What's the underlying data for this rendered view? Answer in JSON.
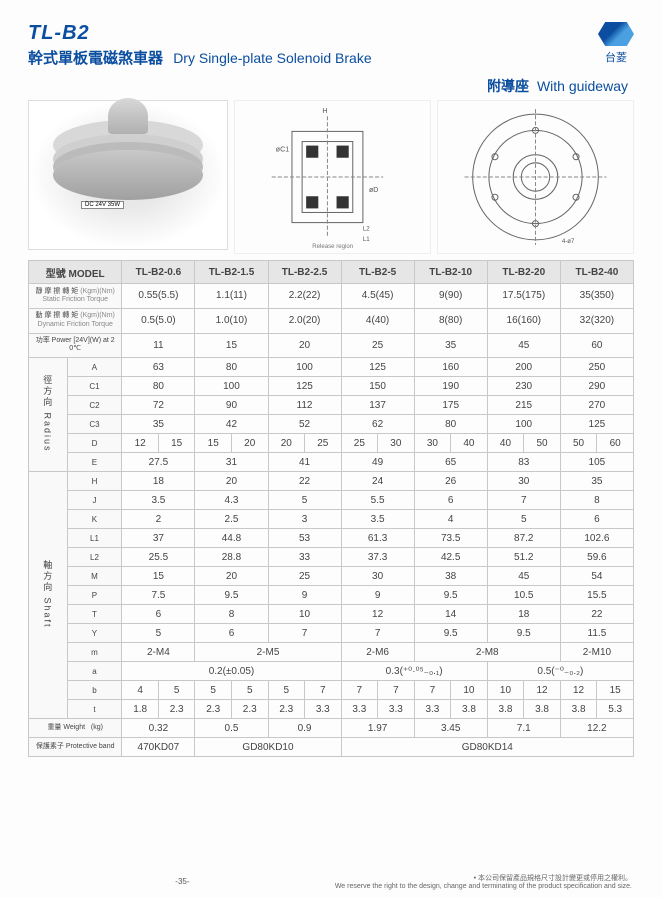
{
  "header": {
    "code": "TL-B2",
    "name_cn": "幹式單板電磁煞車器",
    "name_en": "Dry Single-plate Solenoid Brake",
    "brand": "台菱",
    "guide_cn": "附導座",
    "guide_en": "With guideway",
    "prod_label": "DC 24V 35W"
  },
  "colors": {
    "accent": "#0b4ea0",
    "header_bg": "#e6e6e6",
    "border": "#c8c8c8",
    "text": "#444444",
    "page_bg": "#fdfdfd"
  },
  "models": [
    "TL-B2-0.6",
    "TL-B2-1.5",
    "TL-B2-2.5",
    "TL-B2-5",
    "TL-B2-10",
    "TL-B2-20",
    "TL-B2-40"
  ],
  "rows": {
    "model_label": "型號 MODEL",
    "static_label_cn": "靜 摩 擦 轉 矩",
    "static_label_en": "Static Friction Torque",
    "static_unit": "(Kgm)(Nm)",
    "static": [
      "0.55(5.5)",
      "1.1(11)",
      "2.2(22)",
      "4.5(45)",
      "9(90)",
      "17.5(175)",
      "35(350)"
    ],
    "dynamic_label_cn": "動 摩 擦 轉 矩",
    "dynamic_label_en": "Dynamic Friction Torque",
    "dynamic_unit": "(Kgm)(Nm)",
    "dynamic": [
      "0.5(5.0)",
      "1.0(10)",
      "2.0(20)",
      "4(40)",
      "8(80)",
      "16(160)",
      "32(320)"
    ],
    "power_label": "功率 Power [24V](W) at 20℃",
    "power": [
      "11",
      "15",
      "20",
      "25",
      "35",
      "45",
      "60"
    ],
    "radius_label": "徑方向\nRadius",
    "A": [
      "63",
      "80",
      "100",
      "125",
      "160",
      "200",
      "250"
    ],
    "C1": [
      "80",
      "100",
      "125",
      "150",
      "190",
      "230",
      "290"
    ],
    "C2": [
      "72",
      "90",
      "112",
      "137",
      "175",
      "215",
      "270"
    ],
    "C3": [
      "35",
      "42",
      "52",
      "62",
      "80",
      "100",
      "125"
    ],
    "D": [
      [
        "12",
        "15"
      ],
      [
        "15",
        "20"
      ],
      [
        "20",
        "25"
      ],
      [
        "25",
        "30"
      ],
      [
        "30",
        "40"
      ],
      [
        "40",
        "50"
      ],
      [
        "50",
        "60"
      ]
    ],
    "E": [
      "27.5",
      "31",
      "41",
      "49",
      "65",
      "83",
      "105"
    ],
    "shaft_label": "軸方向\nShaft",
    "H": [
      "18",
      "20",
      "22",
      "24",
      "26",
      "30",
      "35"
    ],
    "J": [
      "3.5",
      "4.3",
      "5",
      "5.5",
      "6",
      "7",
      "8"
    ],
    "K": [
      "2",
      "2.5",
      "3",
      "3.5",
      "4",
      "5",
      "6"
    ],
    "L1": [
      "37",
      "44.8",
      "53",
      "61.3",
      "73.5",
      "87.2",
      "102.6"
    ],
    "L2": [
      "25.5",
      "28.8",
      "33",
      "37.3",
      "42.5",
      "51.2",
      "59.6"
    ],
    "M": [
      "15",
      "20",
      "25",
      "30",
      "38",
      "45",
      "54"
    ],
    "P": [
      "7.5",
      "9.5",
      "9",
      "9",
      "9.5",
      "10.5",
      "15.5"
    ],
    "T": [
      "6",
      "8",
      "10",
      "12",
      "14",
      "18",
      "22"
    ],
    "Y": [
      "5",
      "6",
      "7",
      "7",
      "9.5",
      "9.5",
      "11.5"
    ],
    "m_label": "m",
    "m_vals": [
      "2-M4",
      "2-M5",
      "2-M6",
      "2-M8",
      "2-M10"
    ],
    "m_spans": [
      1,
      2,
      1,
      2,
      1
    ],
    "a_label": "a",
    "a_vals": [
      "0.2(±0.05)",
      "0.3(⁺⁰·⁰⁵₋₀.₁)",
      "0.5(⁻⁰₋₀.₂)"
    ],
    "a_spans": [
      3,
      2,
      2
    ],
    "b": [
      [
        "4",
        "5"
      ],
      [
        "5",
        "5"
      ],
      [
        "5",
        "7"
      ],
      [
        "7",
        "7"
      ],
      [
        "7",
        "10"
      ],
      [
        "10",
        "12"
      ],
      [
        "12",
        "15"
      ]
    ],
    "t": [
      [
        "1.8",
        "2.3"
      ],
      [
        "2.3",
        "2.3"
      ],
      [
        "2.3",
        "3.3"
      ],
      [
        "3.3",
        "3.3"
      ],
      [
        "3.3",
        "3.8"
      ],
      [
        "3.8",
        "3.8"
      ],
      [
        "3.8",
        "5.3"
      ]
    ],
    "weight_label_cn": "重量 Weight",
    "weight_unit": "(kg)",
    "weight": [
      "0.32",
      "0.5",
      "0.9",
      "1.97",
      "3.45",
      "7.1",
      "12.2"
    ],
    "pband_label_cn": "保護素子 Protective band",
    "pband_vals": [
      "470KD07",
      "GD80KD10",
      "GD80KD14"
    ],
    "pband_spans": [
      1,
      2,
      4
    ]
  },
  "footer": {
    "page": "-35-",
    "note_cn": "• 本公司保留產品規格尺寸設計變更或停用之權利。",
    "note_en": "We reserve the right to the design, change and terminating of the product specification and size."
  }
}
